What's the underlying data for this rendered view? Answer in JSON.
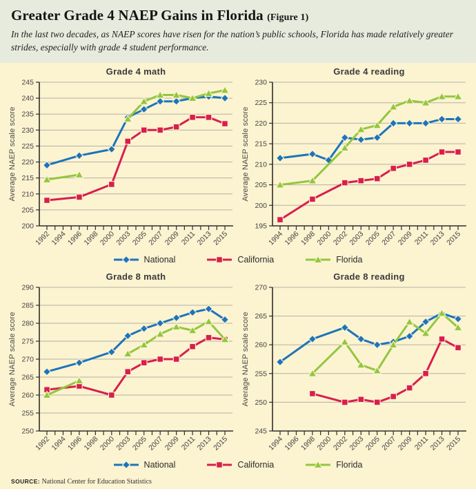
{
  "header": {
    "title": "Greater Grade 4 NAEP Gains in Florida",
    "figure_label": "(Figure 1)",
    "subtitle": "In the last two decades, as NAEP scores have risen for the nation’s public schools, Florida has made relatively greater strides, especially with grade 4 student performance."
  },
  "colors": {
    "panel_background": "#FCF3D1",
    "header_background": "#E7EBDD",
    "gridline": "#B5B1A2",
    "axis": "#2E2D2B",
    "tick_text": "#434343",
    "national_blue": "#1C74BB",
    "california_red": "#D81E4D",
    "florida_green": "#92C73D"
  },
  "legend": {
    "items": [
      {
        "name": "National",
        "slug": "national",
        "color": "#1C74BB",
        "marker": "diamond"
      },
      {
        "name": "California",
        "slug": "california",
        "color": "#D81E4D",
        "marker": "square"
      },
      {
        "name": "Florida",
        "slug": "florida",
        "color": "#92C73D",
        "marker": "triangle"
      }
    ]
  },
  "source": {
    "label": "SOURCE:",
    "text": "National Center for Education Statistics"
  },
  "chart_data": [
    {
      "type": "line",
      "title": "Grade 4 math",
      "ylabel": "Average NAEP scale score",
      "ylim": [
        200,
        245
      ],
      "ytick_step": 5,
      "grid": true,
      "legend_position": "below",
      "categories": [
        "1992",
        "1994",
        "1996",
        "1998",
        "2000",
        "2003",
        "2005",
        "2007",
        "2009",
        "2011",
        "2013",
        "2015"
      ],
      "series": [
        {
          "name": "National",
          "values": [
            219,
            null,
            222,
            null,
            224,
            234,
            236.5,
            239,
            239,
            240,
            240.5,
            240
          ]
        },
        {
          "name": "California",
          "values": [
            208,
            null,
            209,
            null,
            213,
            226.5,
            230,
            230,
            231,
            234,
            234,
            232
          ]
        },
        {
          "name": "Florida",
          "values": [
            214.5,
            null,
            216,
            null,
            null,
            233.5,
            239,
            241,
            241,
            240,
            241.5,
            242.5
          ]
        }
      ]
    },
    {
      "type": "line",
      "title": "Grade 4 reading",
      "ylabel": "Average NAEP scale score",
      "ylim": [
        195,
        230
      ],
      "ytick_step": 5,
      "grid": true,
      "legend_position": "below",
      "categories": [
        "1994",
        "1996",
        "1998",
        "2000",
        "2002",
        "2003",
        "2005",
        "2007",
        "2009",
        "2011",
        "2013",
        "2015"
      ],
      "series": [
        {
          "name": "National",
          "values": [
            211.5,
            null,
            212.5,
            211,
            216.5,
            216,
            216.5,
            220,
            220,
            220,
            221,
            221
          ]
        },
        {
          "name": "California",
          "values": [
            196.5,
            null,
            201.5,
            null,
            205.5,
            206,
            206.5,
            209,
            210,
            211,
            213,
            213
          ]
        },
        {
          "name": "Florida",
          "values": [
            205,
            null,
            206,
            null,
            214,
            218.5,
            219.5,
            224,
            225.5,
            225,
            226.5,
            226.5
          ]
        }
      ]
    },
    {
      "type": "line",
      "title": "Grade 8 math",
      "ylabel": "Average NAEP scale score",
      "ylim": [
        250,
        290
      ],
      "ytick_step": 5,
      "grid": true,
      "legend_position": "below",
      "categories": [
        "1992",
        "1994",
        "1996",
        "1998",
        "2000",
        "2003",
        "2005",
        "2007",
        "2009",
        "2011",
        "2013",
        "2015"
      ],
      "series": [
        {
          "name": "National",
          "values": [
            266.5,
            null,
            269,
            null,
            272,
            276.5,
            278.5,
            280,
            281.5,
            283,
            284,
            281
          ]
        },
        {
          "name": "California",
          "values": [
            261.5,
            null,
            262.5,
            null,
            260,
            266.5,
            269,
            270,
            270,
            273.5,
            276,
            275.5
          ]
        },
        {
          "name": "Florida",
          "values": [
            260,
            null,
            264,
            null,
            null,
            271.5,
            274,
            277,
            279,
            278,
            280.5,
            275.5
          ]
        }
      ]
    },
    {
      "type": "line",
      "title": "Grade 8 reading",
      "ylabel": "Average NAEP scale score",
      "ylim": [
        245,
        270
      ],
      "ytick_step": 5,
      "grid": true,
      "legend_position": "below",
      "categories": [
        "1994",
        "1996",
        "1998",
        "2000",
        "2002",
        "2003",
        "2005",
        "2007",
        "2009",
        "2011",
        "2013",
        "2015"
      ],
      "series": [
        {
          "name": "National",
          "values": [
            257,
            null,
            261,
            null,
            263,
            261,
            260,
            260.5,
            261.5,
            264,
            265.5,
            264.5
          ]
        },
        {
          "name": "California",
          "values": [
            null,
            null,
            251.5,
            null,
            250,
            250.5,
            250,
            251,
            252.5,
            255,
            261,
            259.5
          ]
        },
        {
          "name": "Florida",
          "values": [
            null,
            null,
            255,
            null,
            260.5,
            256.5,
            255.5,
            260,
            264,
            262,
            265.5,
            263
          ]
        }
      ]
    }
  ]
}
